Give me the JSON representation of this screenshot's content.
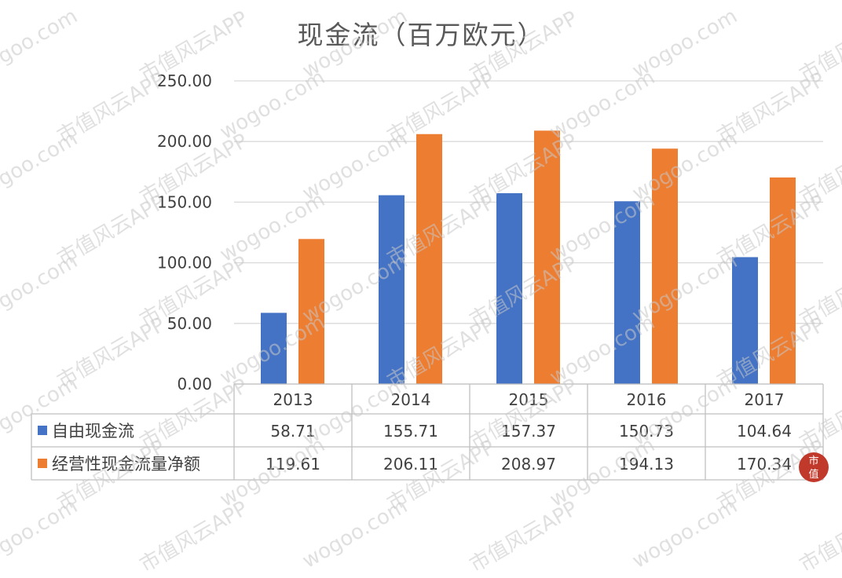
{
  "chart_data": {
    "type": "bar",
    "title": "现金流（百万欧元）",
    "categories": [
      "2013",
      "2014",
      "2015",
      "2016",
      "2017"
    ],
    "y_tick_labels": [
      "250.00",
      "200.00",
      "150.00",
      "100.00",
      "50.00",
      "0.00"
    ],
    "ylim": [
      0,
      250
    ],
    "grid": true,
    "legend": "data-table",
    "series": [
      {
        "name": "自由现金流",
        "color": "#4472C4",
        "values": [
          58.71,
          155.71,
          157.37,
          150.73,
          104.64
        ],
        "labels": [
          "58.71",
          "155.71",
          "157.37",
          "150.73",
          "104.64"
        ]
      },
      {
        "name": "经营性现金流量净额",
        "color": "#ED7D31",
        "values": [
          119.61,
          206.11,
          208.97,
          194.13,
          170.34
        ],
        "labels": [
          "119.61",
          "206.11",
          "208.97",
          "194.13",
          "170.34"
        ]
      }
    ]
  },
  "watermark": {
    "site": "wogoo.com",
    "brand": "市值风云APP"
  },
  "logo": {
    "glyph_1": "市",
    "glyph_2": "值"
  }
}
